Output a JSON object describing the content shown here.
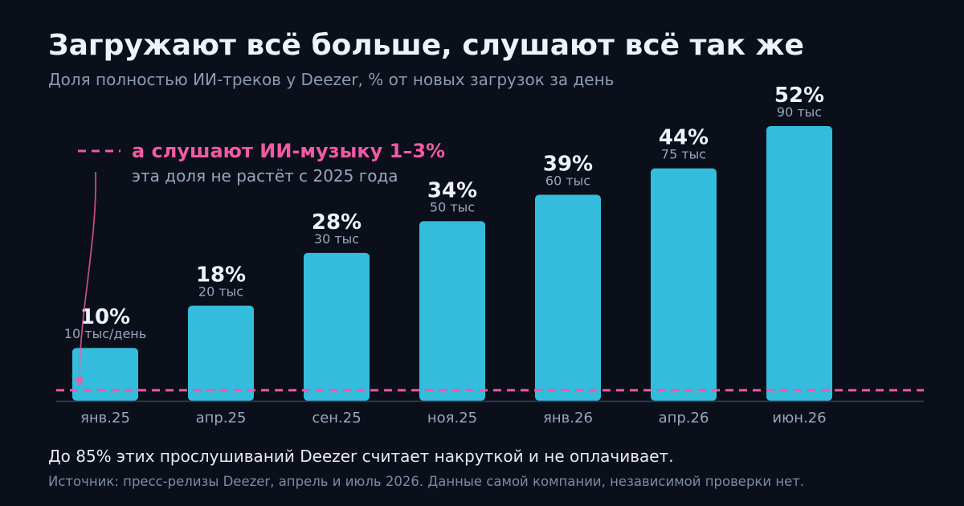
{
  "header": {
    "title": "Загружают всё больше, слушают всё так же",
    "subtitle": "Доля полностью ИИ-треков у Deezer, % от новых загрузок за день"
  },
  "annotation": {
    "title": "а слушают ИИ-музыку 1–3%",
    "text": "эта доля не растёт с 2025 года"
  },
  "footer": {
    "note": "До 85% этих прослушиваний Deezer считает накруткой и не оплачивает.",
    "source": "Источник: пресс-релизы Deezer, апрель и июль 2026. Данные самой компании, независимой проверки нет."
  },
  "colors": {
    "bar": "#33bcdc",
    "reference_line": "#f05aa4",
    "value_label": "#eef2fb",
    "sub_label": "#9aa6bd",
    "tick_label": "#9aa6bd",
    "axis": "#3a4358"
  },
  "chart_data": {
    "type": "bar",
    "categories": [
      "янв.25",
      "апр.25",
      "сен.25",
      "ноя.25",
      "янв.26",
      "апр.26",
      "июн.26"
    ],
    "values": [
      10,
      18,
      28,
      34,
      39,
      44,
      52
    ],
    "value_labels": [
      "10%",
      "18%",
      "28%",
      "34%",
      "39%",
      "44%",
      "52%"
    ],
    "sub_labels": [
      "10 тыс/день",
      "20 тыс",
      "30 тыс",
      "50 тыс",
      "60 тыс",
      "75 тыс",
      "90 тыс"
    ],
    "reference_line": {
      "value": 2
    },
    "ylim": [
      0,
      52
    ],
    "grid": false,
    "legend": "none"
  }
}
